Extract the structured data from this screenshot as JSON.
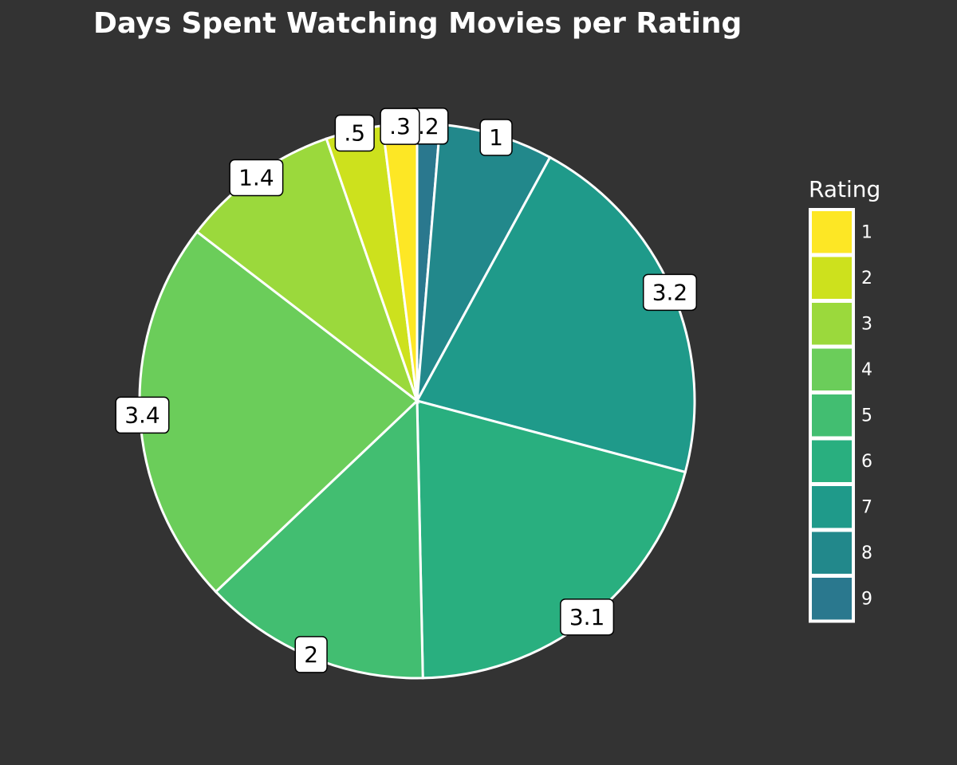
{
  "chart_data": {
    "type": "pie",
    "title": "Days Spent Watching Movies per Rating",
    "legend": {
      "title": "Rating",
      "position": "right"
    },
    "slices": [
      {
        "category": "9",
        "value": 0.2,
        "label": ".2",
        "color": "#2A788E"
      },
      {
        "category": "8",
        "value": 1.0,
        "label": "1",
        "color": "#22888B"
      },
      {
        "category": "7",
        "value": 3.2,
        "label": "3.2",
        "color": "#1F9A8A"
      },
      {
        "category": "6",
        "value": 3.1,
        "label": "3.1",
        "color": "#29AF7F"
      },
      {
        "category": "5",
        "value": 2.0,
        "label": "2",
        "color": "#42BE71"
      },
      {
        "category": "4",
        "value": 3.4,
        "label": "3.4",
        "color": "#6BCD5A"
      },
      {
        "category": "3",
        "value": 1.4,
        "label": "1.4",
        "color": "#9BD93C"
      },
      {
        "category": "2",
        "value": 0.5,
        "label": ".5",
        "color": "#CDE11D"
      },
      {
        "category": "1",
        "value": 0.3,
        "label": ".3",
        "color": "#FDE725"
      }
    ],
    "legend_order": [
      "1",
      "2",
      "3",
      "4",
      "5",
      "6",
      "7",
      "8",
      "9"
    ]
  },
  "colors": {
    "background": "#333333",
    "slice_border": "#ffffff"
  }
}
